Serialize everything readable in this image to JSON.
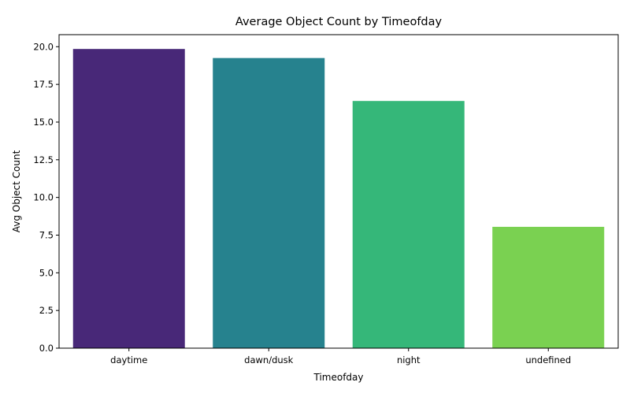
{
  "chart_data": {
    "type": "bar",
    "title": "Average Object Count by Timeofday",
    "xlabel": "Timeofday",
    "ylabel": "Avg Object Count",
    "categories": [
      "daytime",
      "dawn/dusk",
      "night",
      "undefined"
    ],
    "values": [
      19.85,
      19.25,
      16.4,
      8.05
    ],
    "colors": [
      "#482878",
      "#26828e",
      "#35b779",
      "#7ad151"
    ],
    "ylim": [
      0,
      20.8
    ],
    "yticks": [
      0.0,
      2.5,
      5.0,
      7.5,
      10.0,
      12.5,
      15.0,
      17.5,
      20.0
    ],
    "ytick_labels": [
      "0.0",
      "2.5",
      "5.0",
      "7.5",
      "10.0",
      "12.5",
      "15.0",
      "17.5",
      "20.0"
    ],
    "grid": false,
    "legend": "none"
  }
}
